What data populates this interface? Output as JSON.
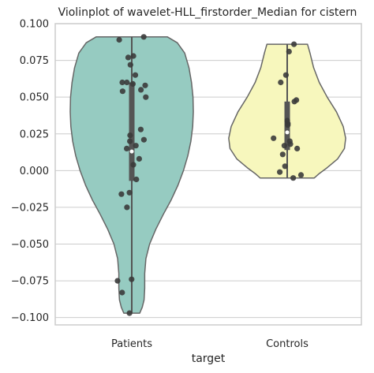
{
  "chart_data": {
    "type": "violin",
    "title": "Violinplot of wavelet-HLL_firstorder_Median for cistern",
    "xlabel": "target",
    "ylabel": "",
    "ylim": [
      -0.105,
      0.1
    ],
    "yticks": [
      "0.100",
      "0.075",
      "0.050",
      "0.025",
      "0.000",
      "−0.025",
      "−0.050",
      "−0.075",
      "−0.100"
    ],
    "ytick_values": [
      0.1,
      0.075,
      0.05,
      0.025,
      0.0,
      -0.025,
      -0.05,
      -0.075,
      -0.1
    ],
    "grid": "horizontal",
    "categories": [
      "Patients",
      "Controls"
    ],
    "colors": {
      "Patients": "#96cbc1",
      "Controls": "#f7f7bd",
      "outline": "#666666",
      "box": "#555555",
      "points": "#3b3b3b"
    },
    "series": [
      {
        "category": "Patients",
        "range": [
          -0.097,
          0.091
        ],
        "quartiles": [
          -0.007,
          0.013,
          0.06
        ],
        "median": 0.013,
        "points": [
          0.091,
          0.089,
          0.078,
          0.077,
          0.072,
          0.065,
          0.06,
          0.06,
          0.059,
          0.058,
          0.055,
          0.054,
          0.05,
          0.028,
          0.024,
          0.021,
          0.02,
          0.017,
          0.015,
          0.008,
          0.004,
          -0.006,
          -0.015,
          -0.016,
          -0.025,
          -0.074,
          -0.075,
          -0.083,
          -0.097
        ]
      },
      {
        "category": "Controls",
        "range": [
          -0.005,
          0.086
        ],
        "quartiles": [
          0.014,
          0.026,
          0.047
        ],
        "median": 0.026,
        "points": [
          0.086,
          0.081,
          0.065,
          0.06,
          0.048,
          0.047,
          0.034,
          0.032,
          0.031,
          0.022,
          0.02,
          0.018,
          0.017,
          0.015,
          0.011,
          0.003,
          -0.001,
          -0.003,
          -0.005
        ]
      }
    ]
  }
}
